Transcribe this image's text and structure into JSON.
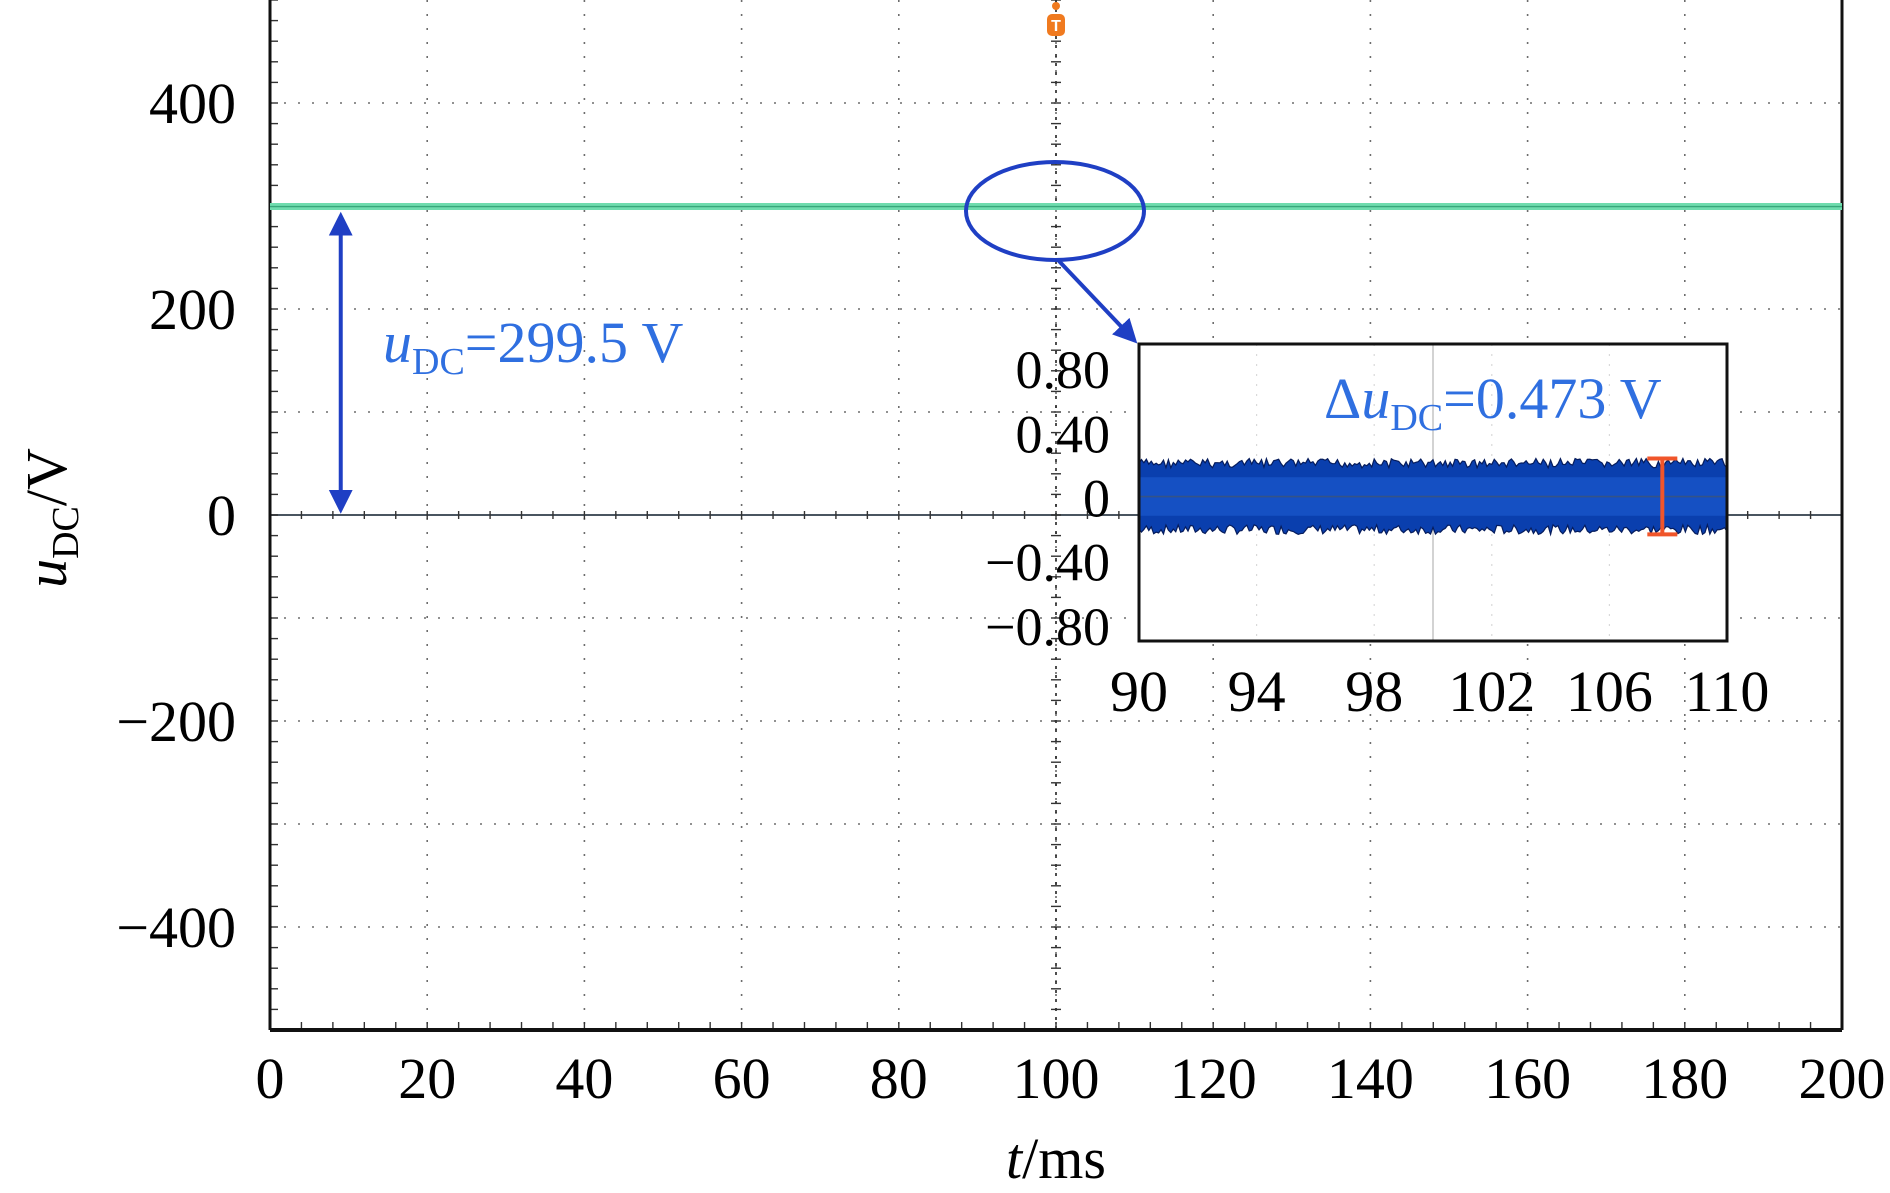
{
  "chart_data": [
    {
      "type": "line",
      "xlabel": {
        "var": "t",
        "unit": "/ms"
      },
      "ylabel": {
        "var": "u",
        "sub": "DC",
        "unit": "/V"
      },
      "xlim": [
        0,
        200
      ],
      "ylim": [
        -500,
        500
      ],
      "x_ticks": [
        0,
        20,
        40,
        60,
        80,
        100,
        120,
        140,
        160,
        180,
        200
      ],
      "y_ticks": [
        -400,
        -200,
        0,
        200,
        400
      ],
      "grid": true,
      "trigger_marker": "T",
      "series": [
        {
          "x": [
            0,
            200
          ],
          "values": [
            299.5,
            299.5
          ],
          "color": "#6fdcae"
        }
      ],
      "annotations": {
        "level": {
          "var": "u",
          "sub": "DC",
          "text": "=299.5 V",
          "color": "#2f6fe0"
        }
      }
    },
    {
      "type": "line",
      "xlim": [
        90,
        110
      ],
      "ylim": [
        -0.9,
        0.95
      ],
      "x_ticks": [
        90,
        94,
        98,
        102,
        106,
        110
      ],
      "y_ticks": [
        0.8,
        0.4,
        0,
        -0.4,
        -0.8
      ],
      "y_tick_labels": [
        "0.80",
        "0.40",
        "0",
        "−0.40",
        "−0.80"
      ],
      "series": [
        {
          "x": [
            90,
            110
          ],
          "values_min": [
            -0.236,
            -0.236
          ],
          "values_max": [
            0.237,
            0.237
          ],
          "color": "#0a3fae"
        }
      ],
      "annotations": {
        "ripple": {
          "prefix": "Δ",
          "var": "u",
          "sub": "DC",
          "text": "=0.473 V",
          "color": "#2f6fe0"
        }
      }
    }
  ]
}
